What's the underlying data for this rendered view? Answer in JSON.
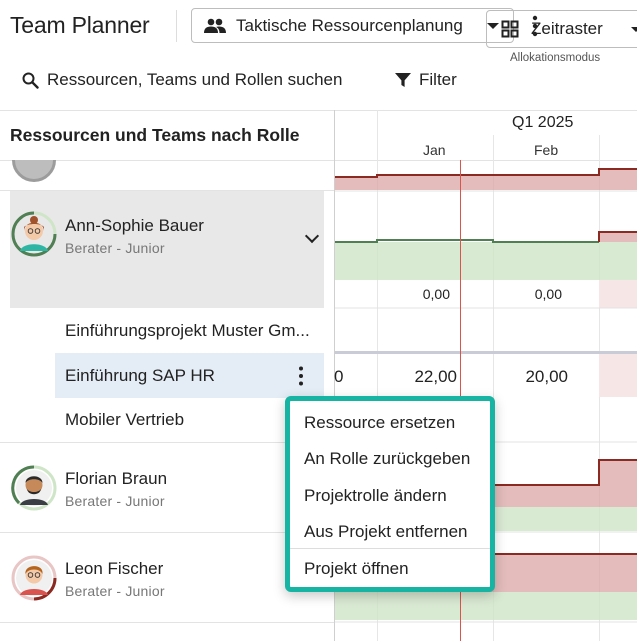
{
  "app": {
    "title": "Team Planner"
  },
  "plan_selector": {
    "value": "Taktische Ressourcenplanung",
    "icon": "people-icon"
  },
  "toolbar": {
    "search_label": "Ressourcen, Teams und Rollen suchen",
    "filter_label": "Filter",
    "mode_legend": "Allokationsmodus",
    "mode_value": "Zeitraster"
  },
  "left_panel": {
    "header": "Ressourcen und Teams nach Rolle"
  },
  "timeline": {
    "quarter": "Q1 2025",
    "months": [
      "Jan",
      "Feb"
    ]
  },
  "resources": [
    {
      "name": "Ann-Sophie Bauer",
      "role": "Berater - Junior",
      "totals": [
        "0,00",
        "0,00"
      ]
    },
    {
      "name": "Florian Braun",
      "role": "Berater - Junior"
    },
    {
      "name": "Leon Fischer",
      "role": "Berater - Junior"
    }
  ],
  "projects": [
    {
      "name": "Einführungsprojekt Muster Gm..."
    },
    {
      "name": "Einführung SAP HR",
      "values": [
        "0",
        "22,00",
        "20,00"
      ]
    },
    {
      "name": "Mobiler Vertrieb"
    }
  ],
  "context_menu": {
    "items": [
      "Ressource ersetzen",
      "An Rolle zurückgeben",
      "Projektrolle ändern",
      "Aus Projekt entfernen",
      "Projekt öffnen"
    ]
  },
  "colors": {
    "accent_outline": "#17b3a3",
    "over_allocation": "#d9a6a4",
    "under_allocation": "#cfe5c8",
    "today_line": "#d9534f"
  }
}
